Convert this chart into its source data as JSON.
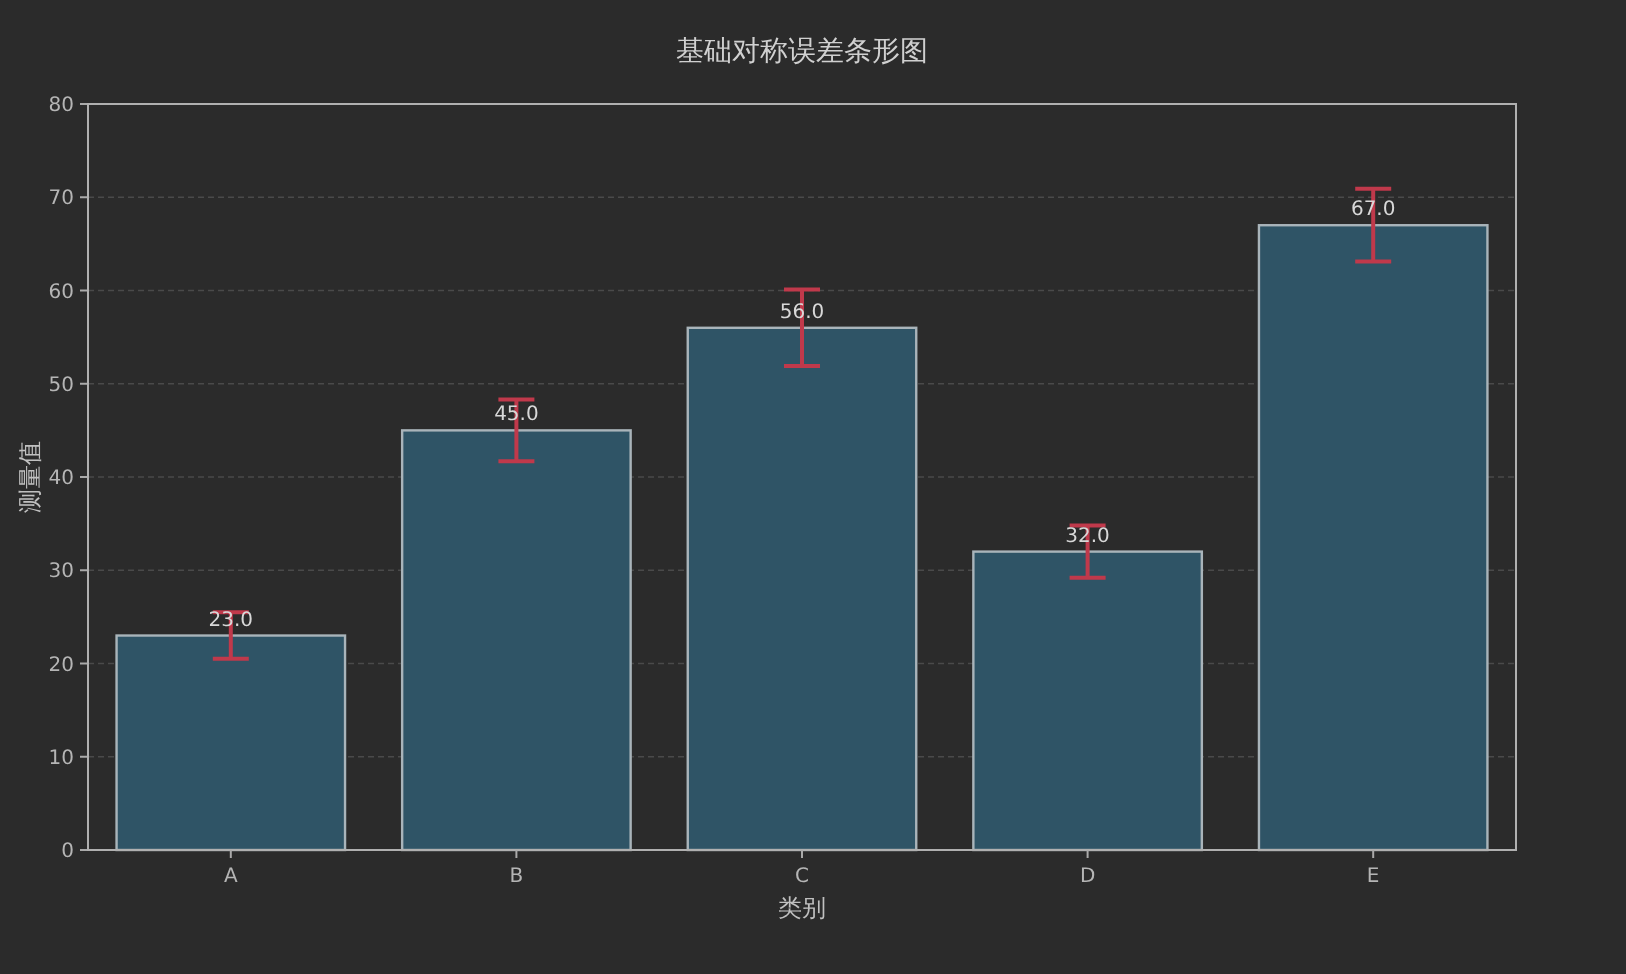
{
  "chart_data": {
    "type": "bar",
    "title": "基础对称误差条形图",
    "xlabel": "类别",
    "ylabel": "测量值",
    "categories": [
      "A",
      "B",
      "C",
      "D",
      "E"
    ],
    "values": [
      23,
      45,
      56,
      32,
      67
    ],
    "errors": [
      2.5,
      3.3,
      4.1,
      2.8,
      3.9
    ],
    "value_labels": [
      "23.0",
      "45.0",
      "56.0",
      "32.0",
      "67.0"
    ],
    "color": "#2f5466",
    "ylim": [
      0,
      80
    ],
    "yticks": [
      0,
      10,
      20,
      30,
      40,
      50,
      60,
      70,
      80
    ],
    "grid": "y"
  }
}
